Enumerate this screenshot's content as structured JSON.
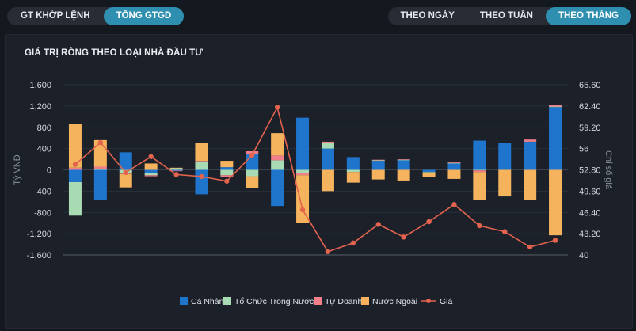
{
  "tabs_left": [
    {
      "label": "GT KHỚP LỆNH",
      "active": false
    },
    {
      "label": "TỔNG GTGD",
      "active": true
    }
  ],
  "tabs_right": [
    {
      "label": "THEO NGÀY",
      "active": false
    },
    {
      "label": "THEO TUẦN",
      "active": false
    },
    {
      "label": "THEO THÁNG",
      "active": true
    }
  ],
  "panel": {
    "title": "GIÁ TRỊ RÒNG THEO LOẠI NHÀ ĐẦU TƯ"
  },
  "chart_data": {
    "type": "bar",
    "stacked": true,
    "title": "GIÁ TRỊ RÒNG THEO LOẠI NHÀ ĐẦU TƯ",
    "ylabel": "Tỷ VNĐ",
    "y2label": "Chỉ số giá",
    "ylim": [
      -1600,
      1600
    ],
    "yticks": [
      1600,
      1200,
      800,
      400,
      0,
      -400,
      -800,
      -1200,
      -1600
    ],
    "ytick_labels": [
      "1,600",
      "1,200",
      "800",
      "400",
      "0",
      "-400",
      "-800",
      "-1,200",
      "-1,600"
    ],
    "y2lim": [
      40,
      65.6
    ],
    "y2ticks": [
      65.6,
      62.4,
      59.2,
      56,
      52.8,
      49.6,
      46.4,
      43.2,
      40
    ],
    "y2tick_labels": [
      "65.60",
      "62.40",
      "59.20",
      "56",
      "52.80",
      "49.60",
      "46.40",
      "43.20",
      "40"
    ],
    "grid": true,
    "legend_position": "bottom",
    "series": [
      {
        "name": "Cá Nhân",
        "color": "#1f74cc",
        "values": [
          -230,
          -560,
          330,
          -60,
          -15,
          -460,
          50,
          300,
          -680,
          980,
          400,
          240,
          170,
          180,
          -40,
          120,
          550,
          500,
          530,
          1180
        ]
      },
      {
        "name": "Tổ Chức Trong Nước",
        "color": "#a8dbb4",
        "values": [
          -630,
          20,
          -70,
          -40,
          30,
          160,
          -100,
          -120,
          180,
          -60,
          110,
          -40,
          10,
          10,
          -10,
          10,
          -10,
          0,
          0,
          10
        ]
      },
      {
        "name": "Tự Doanh",
        "color": "#f07f89",
        "values": [
          40,
          40,
          -10,
          -20,
          -10,
          10,
          -40,
          50,
          90,
          -40,
          20,
          0,
          10,
          10,
          0,
          20,
          -30,
          10,
          40,
          30
        ]
      },
      {
        "name": "Nước Ngoài",
        "color": "#f5b35e",
        "values": [
          820,
          500,
          -250,
          120,
          10,
          330,
          120,
          -230,
          420,
          -890,
          -400,
          -200,
          -180,
          -200,
          -80,
          -170,
          -530,
          -500,
          -570,
          -1230
        ]
      }
    ],
    "price_series": {
      "name": "Giá",
      "color": "#e3634f",
      "values": [
        53.6,
        56.9,
        52.4,
        54.8,
        52.1,
        51.8,
        51.1,
        55.0,
        62.2,
        46.8,
        40.5,
        41.8,
        44.6,
        42.7,
        45.0,
        47.6,
        44.4,
        43.5,
        41.2,
        42.2
      ]
    }
  }
}
